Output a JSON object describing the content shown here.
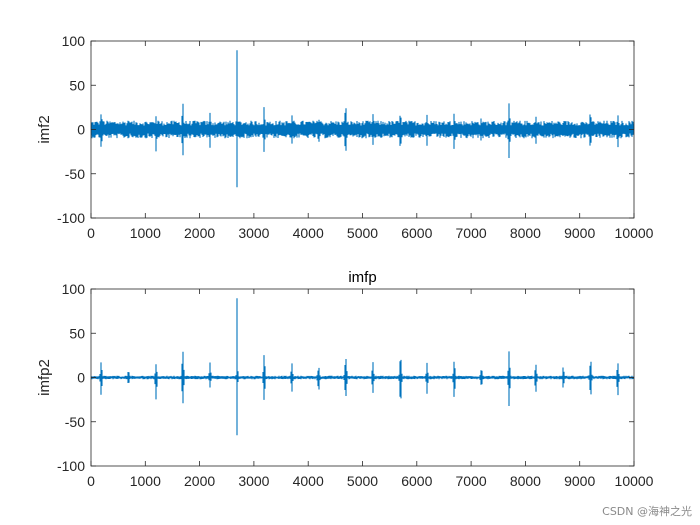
{
  "colors": {
    "signal": "#0072BD",
    "axis": "#262626",
    "background": "#ffffff"
  },
  "watermark": "CSDN @海神之光",
  "chart_data": [
    {
      "type": "line",
      "title": "",
      "xlabel": "",
      "ylabel": "imf2",
      "xlim": [
        0,
        10000
      ],
      "ylim": [
        -100,
        100
      ],
      "xticks": [
        0,
        1000,
        2000,
        3000,
        4000,
        5000,
        6000,
        7000,
        8000,
        9000,
        10000
      ],
      "yticks": [
        -100,
        -50,
        0,
        50,
        100
      ],
      "noise_amplitude": 10,
      "events": [
        {
          "x": 190,
          "max": 22,
          "min": -25
        },
        {
          "x": 690,
          "max": 15,
          "min": -15
        },
        {
          "x": 1200,
          "max": 17,
          "min": -28
        },
        {
          "x": 1690,
          "max": 35,
          "min": -35
        },
        {
          "x": 2190,
          "max": 20,
          "min": -22
        },
        {
          "x": 2690,
          "max": 100,
          "min": -73
        },
        {
          "x": 3190,
          "max": 30,
          "min": -30
        },
        {
          "x": 3700,
          "max": 17,
          "min": -17
        },
        {
          "x": 4190,
          "max": 20,
          "min": -25
        },
        {
          "x": 4690,
          "max": 35,
          "min": -35
        },
        {
          "x": 5190,
          "max": 20,
          "min": -20
        },
        {
          "x": 5700,
          "max": 32,
          "min": -38
        },
        {
          "x": 6190,
          "max": 18,
          "min": -20
        },
        {
          "x": 6690,
          "max": 22,
          "min": -27
        },
        {
          "x": 7190,
          "max": 18,
          "min": -18
        },
        {
          "x": 7700,
          "max": 32,
          "min": -35
        },
        {
          "x": 8190,
          "max": 18,
          "min": -20
        },
        {
          "x": 8700,
          "max": 17,
          "min": -17
        },
        {
          "x": 9200,
          "max": 28,
          "min": -30
        },
        {
          "x": 9700,
          "max": 20,
          "min": -25
        }
      ]
    },
    {
      "type": "line",
      "title": "imfp",
      "xlabel": "",
      "ylabel": "imfp2",
      "xlim": [
        0,
        10000
      ],
      "ylim": [
        -100,
        100
      ],
      "xticks": [
        0,
        1000,
        2000,
        3000,
        4000,
        5000,
        6000,
        7000,
        8000,
        9000,
        10000
      ],
      "yticks": [
        -100,
        -50,
        0,
        50,
        100
      ],
      "noise_amplitude": 2,
      "events": [
        {
          "x": 190,
          "max": 22,
          "min": -25
        },
        {
          "x": 690,
          "max": 15,
          "min": -15
        },
        {
          "x": 1200,
          "max": 17,
          "min": -28
        },
        {
          "x": 1690,
          "max": 35,
          "min": -35
        },
        {
          "x": 2190,
          "max": 18,
          "min": -12
        },
        {
          "x": 2690,
          "max": 100,
          "min": -73
        },
        {
          "x": 3190,
          "max": 30,
          "min": -30
        },
        {
          "x": 3700,
          "max": 17,
          "min": -17
        },
        {
          "x": 4190,
          "max": 20,
          "min": -25
        },
        {
          "x": 4690,
          "max": 35,
          "min": -35
        },
        {
          "x": 5190,
          "max": 20,
          "min": -20
        },
        {
          "x": 5700,
          "max": 32,
          "min": -38
        },
        {
          "x": 6190,
          "max": 18,
          "min": -20
        },
        {
          "x": 6690,
          "max": 22,
          "min": -27
        },
        {
          "x": 7190,
          "max": 18,
          "min": -18
        },
        {
          "x": 7700,
          "max": 32,
          "min": -35
        },
        {
          "x": 8190,
          "max": 18,
          "min": -20
        },
        {
          "x": 8700,
          "max": 17,
          "min": -17
        },
        {
          "x": 9200,
          "max": 28,
          "min": -30
        },
        {
          "x": 9700,
          "max": 20,
          "min": -25
        }
      ]
    }
  ]
}
